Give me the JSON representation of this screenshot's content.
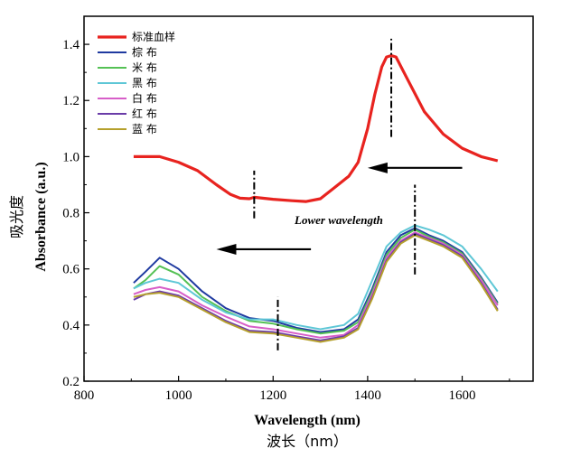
{
  "chart_data": {
    "type": "line",
    "xlabel": "Wavelength (nm)",
    "xlabel_cn": "波长（nm）",
    "ylabel": "Absorbance (a.u.)",
    "ylabel_cn": "吸光度",
    "xlim": [
      800,
      1750
    ],
    "ylim": [
      0.2,
      1.5
    ],
    "xticks": [
      "800",
      "1000",
      "1200",
      "1400",
      "1600"
    ],
    "yticks": [
      "0.2",
      "0.4",
      "0.6",
      "0.8",
      "1.0",
      "1.2",
      "1.4"
    ],
    "grid": false,
    "legend_position": "top-left",
    "annotation": "Lower wavelength",
    "series": [
      {
        "name": "标准血样",
        "color": "#e8231f",
        "x": [
          905,
          930,
          960,
          1000,
          1040,
          1080,
          1110,
          1130,
          1150,
          1160,
          1200,
          1240,
          1270,
          1300,
          1330,
          1360,
          1380,
          1400,
          1415,
          1430,
          1440,
          1450,
          1460,
          1480,
          1520,
          1560,
          1600,
          1640,
          1675
        ],
        "y": [
          1.0,
          1.0,
          1.0,
          0.98,
          0.95,
          0.9,
          0.865,
          0.852,
          0.85,
          0.855,
          0.848,
          0.843,
          0.84,
          0.85,
          0.89,
          0.93,
          0.98,
          1.1,
          1.22,
          1.32,
          1.355,
          1.36,
          1.355,
          1.29,
          1.16,
          1.08,
          1.03,
          1.0,
          0.985
        ]
      },
      {
        "name": "棕  布",
        "color": "#1f3aa0",
        "x": [
          905,
          930,
          960,
          1000,
          1050,
          1100,
          1150,
          1200,
          1250,
          1300,
          1350,
          1380,
          1410,
          1440,
          1470,
          1500,
          1530,
          1560,
          1600,
          1640,
          1675
        ],
        "y": [
          0.55,
          0.59,
          0.64,
          0.6,
          0.52,
          0.46,
          0.425,
          0.415,
          0.39,
          0.375,
          0.385,
          0.42,
          0.53,
          0.66,
          0.72,
          0.745,
          0.72,
          0.7,
          0.66,
          0.57,
          0.48
        ]
      },
      {
        "name": "米  布",
        "color": "#55c155",
        "x": [
          905,
          930,
          960,
          1000,
          1050,
          1100,
          1150,
          1200,
          1250,
          1300,
          1350,
          1380,
          1410,
          1440,
          1470,
          1500,
          1530,
          1560,
          1600,
          1640,
          1675
        ],
        "y": [
          0.53,
          0.56,
          0.61,
          0.58,
          0.5,
          0.45,
          0.415,
          0.405,
          0.385,
          0.37,
          0.38,
          0.41,
          0.52,
          0.65,
          0.71,
          0.74,
          0.715,
          0.695,
          0.655,
          0.565,
          0.475
        ]
      },
      {
        "name": "黑  布",
        "color": "#5ec7d6",
        "x": [
          905,
          930,
          960,
          1000,
          1050,
          1100,
          1150,
          1200,
          1250,
          1300,
          1350,
          1380,
          1410,
          1440,
          1470,
          1500,
          1530,
          1560,
          1600,
          1640,
          1675
        ],
        "y": [
          0.53,
          0.55,
          0.565,
          0.55,
          0.49,
          0.445,
          0.42,
          0.42,
          0.4,
          0.385,
          0.4,
          0.44,
          0.56,
          0.68,
          0.73,
          0.755,
          0.74,
          0.72,
          0.68,
          0.6,
          0.52
        ]
      },
      {
        "name": "白  布",
        "color": "#d75ec8",
        "x": [
          905,
          930,
          960,
          1000,
          1050,
          1100,
          1150,
          1200,
          1250,
          1300,
          1350,
          1380,
          1410,
          1440,
          1470,
          1500,
          1530,
          1560,
          1600,
          1640,
          1675
        ],
        "y": [
          0.51,
          0.525,
          0.535,
          0.52,
          0.47,
          0.43,
          0.395,
          0.385,
          0.37,
          0.355,
          0.365,
          0.4,
          0.51,
          0.64,
          0.7,
          0.73,
          0.71,
          0.69,
          0.65,
          0.56,
          0.47
        ]
      },
      {
        "name": "红  布",
        "color": "#6a3ca8",
        "x": [
          905,
          930,
          960,
          1000,
          1050,
          1100,
          1150,
          1200,
          1250,
          1300,
          1350,
          1380,
          1410,
          1440,
          1470,
          1500,
          1530,
          1560,
          1600,
          1640,
          1675
        ],
        "y": [
          0.49,
          0.51,
          0.52,
          0.505,
          0.46,
          0.415,
          0.38,
          0.375,
          0.36,
          0.345,
          0.36,
          0.39,
          0.5,
          0.63,
          0.695,
          0.725,
          0.705,
          0.685,
          0.645,
          0.55,
          0.455
        ]
      },
      {
        "name": "蓝  布",
        "color": "#b5a02c",
        "x": [
          905,
          930,
          960,
          1000,
          1050,
          1100,
          1150,
          1200,
          1250,
          1300,
          1350,
          1380,
          1410,
          1440,
          1470,
          1500,
          1530,
          1560,
          1600,
          1640,
          1675
        ],
        "y": [
          0.5,
          0.51,
          0.515,
          0.5,
          0.455,
          0.41,
          0.375,
          0.37,
          0.355,
          0.34,
          0.355,
          0.385,
          0.495,
          0.625,
          0.69,
          0.72,
          0.7,
          0.68,
          0.64,
          0.545,
          0.45
        ]
      }
    ],
    "markers": [
      {
        "x": 1450,
        "y_range": [
          1.07,
          1.42
        ]
      },
      {
        "x": 1160,
        "y_range": [
          0.78,
          0.95
        ]
      },
      {
        "x": 1500,
        "y_range": [
          0.58,
          0.9
        ]
      },
      {
        "x": 1210,
        "y_range": [
          0.31,
          0.5
        ]
      }
    ],
    "arrows": [
      {
        "from": [
          1600,
          0.96
        ],
        "to": [
          1400,
          0.96
        ]
      },
      {
        "from": [
          1280,
          0.67
        ],
        "to": [
          1080,
          0.67
        ]
      }
    ]
  }
}
